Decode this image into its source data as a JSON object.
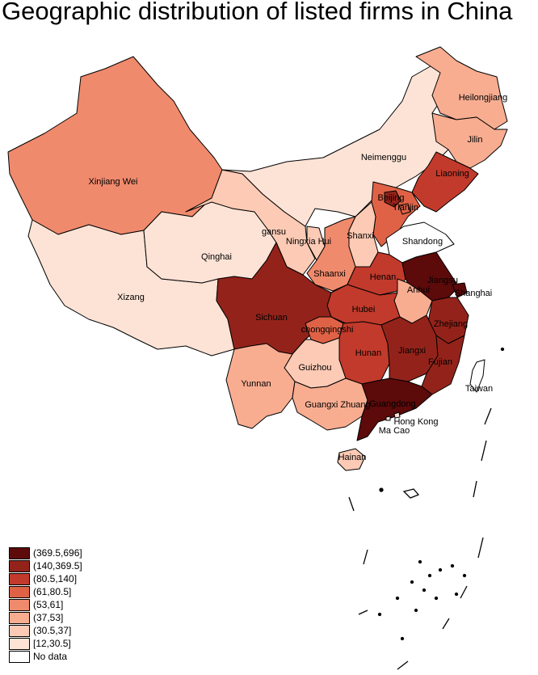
{
  "title": "Geographic distribution of listed firms in China",
  "colors": {
    "c1": "#fde3d6",
    "c2": "#fccab5",
    "c3": "#f8ad91",
    "c4": "#f08a6c",
    "c5": "#e06246",
    "c6": "#c23a2b",
    "c7": "#93231a",
    "c8": "#5c0a0a",
    "nodata": "#ffffff"
  },
  "legend": [
    {
      "label": "(369.5,696]",
      "color": "#5c0a0a"
    },
    {
      "label": "(140,369.5]",
      "color": "#93231a"
    },
    {
      "label": "(80.5,140]",
      "color": "#c23a2b"
    },
    {
      "label": "(61,80.5]",
      "color": "#e06246"
    },
    {
      "label": "(53,61]",
      "color": "#f08a6c"
    },
    {
      "label": "(37,53]",
      "color": "#f8ad91"
    },
    {
      "label": "(30.5,37]",
      "color": "#fccab5"
    },
    {
      "label": "[12,30.5]",
      "color": "#fde3d6"
    },
    {
      "label": "No data",
      "color": "#ffffff"
    }
  ],
  "provinces": {
    "heilongjiang": "Heilongjiang",
    "jilin": "Jilin",
    "liaoning": "Liaoning",
    "neimenggu": "Neimenggu",
    "xinjiang": "Xinjiang Wei",
    "beijing": "Beijing",
    "tianjin": "Tianjin",
    "hebei": "Hebei",
    "shandong": "Shandong",
    "gansu": "gansu",
    "ningxia": "Ningxia Hui",
    "shanxi": "Shanxi",
    "qinghai": "Qinghai",
    "shaanxi": "Shaanxi",
    "henan": "Henan",
    "jiangsu": "Jiangsu",
    "shanghai": "Shanghai",
    "anhui": "Anhui",
    "xizang": "Xizang",
    "sichuan": "Sichuan",
    "hubei": "Hubei",
    "zhejiang": "Zhejiang",
    "chongqing": "chongqingshi",
    "hunan": "Hunan",
    "jiangxi": "Jiangxi",
    "fujian": "Fujian",
    "guizhou": "Guizhou",
    "yunnan": "Yunnan",
    "taiwan": "Taiwan",
    "guangxi": "Guangxi Zhuang",
    "guangdong": "Guangdong",
    "hongkong": "Hong Kong",
    "macao": "Ma Cao",
    "hainan": "Hainan"
  }
}
